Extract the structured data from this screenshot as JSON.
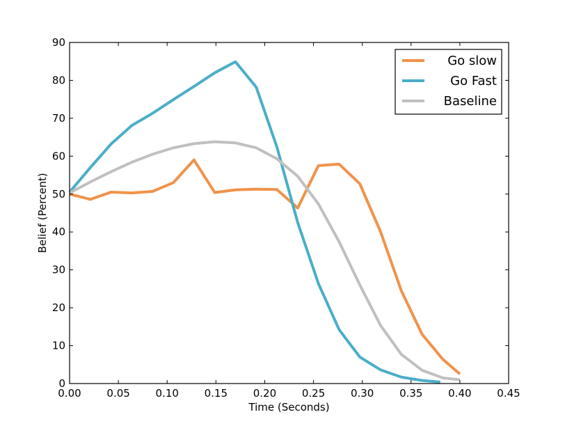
{
  "chart_data": {
    "type": "line",
    "xlabel": "Time (Seconds)",
    "ylabel": "Belief (Percent)",
    "xlim": [
      0,
      0.45
    ],
    "ylim": [
      0,
      90
    ],
    "xticks": [
      "0.00",
      "0.05",
      "0.10",
      "0.15",
      "0.20",
      "0.25",
      "0.30",
      "0.35",
      "0.40",
      "0.45"
    ],
    "yticks": [
      "0",
      "10",
      "20",
      "30",
      "40",
      "50",
      "60",
      "70",
      "80",
      "90"
    ],
    "grid": false,
    "legend_position": "top-right",
    "series": [
      {
        "name": "Go slow",
        "color": "#f0924a",
        "x": [
          0.0,
          0.0213,
          0.0425,
          0.0638,
          0.085,
          0.1063,
          0.1275,
          0.1488,
          0.17,
          0.1913,
          0.2125,
          0.2338,
          0.255,
          0.2763,
          0.2975,
          0.3188,
          0.34,
          0.3613,
          0.3825,
          0.4
        ],
        "y": [
          50.0,
          48.6,
          50.5,
          50.3,
          50.7,
          53.0,
          59.0,
          50.4,
          51.1,
          51.3,
          51.2,
          46.3,
          57.5,
          57.9,
          52.7,
          40.0,
          24.5,
          13.0,
          6.4,
          2.5
        ]
      },
      {
        "name": "Go Fast",
        "color": "#4aaec9",
        "x": [
          0.0,
          0.0213,
          0.0425,
          0.0638,
          0.085,
          0.1063,
          0.1275,
          0.1488,
          0.17,
          0.1913,
          0.2125,
          0.2338,
          0.255,
          0.2763,
          0.2975,
          0.3188,
          0.34,
          0.3613,
          0.38
        ],
        "y": [
          50.5,
          57.0,
          63.2,
          68.1,
          71.3,
          74.9,
          78.4,
          82.0,
          84.9,
          78.2,
          62.4,
          42.5,
          26.4,
          14.2,
          7.0,
          3.6,
          1.7,
          0.8,
          0.4
        ]
      },
      {
        "name": "Baseline",
        "color": "#c0c0c0",
        "x": [
          0.0,
          0.0213,
          0.0425,
          0.0638,
          0.085,
          0.1063,
          0.1275,
          0.1488,
          0.17,
          0.1913,
          0.2125,
          0.2338,
          0.255,
          0.2763,
          0.2975,
          0.3188,
          0.34,
          0.3613,
          0.3825,
          0.4
        ],
        "y": [
          50.3,
          53.2,
          55.9,
          58.4,
          60.5,
          62.2,
          63.3,
          63.8,
          63.5,
          62.2,
          59.3,
          54.7,
          47.4,
          37.4,
          26.0,
          15.3,
          7.7,
          3.5,
          1.5,
          1.0
        ]
      }
    ]
  }
}
